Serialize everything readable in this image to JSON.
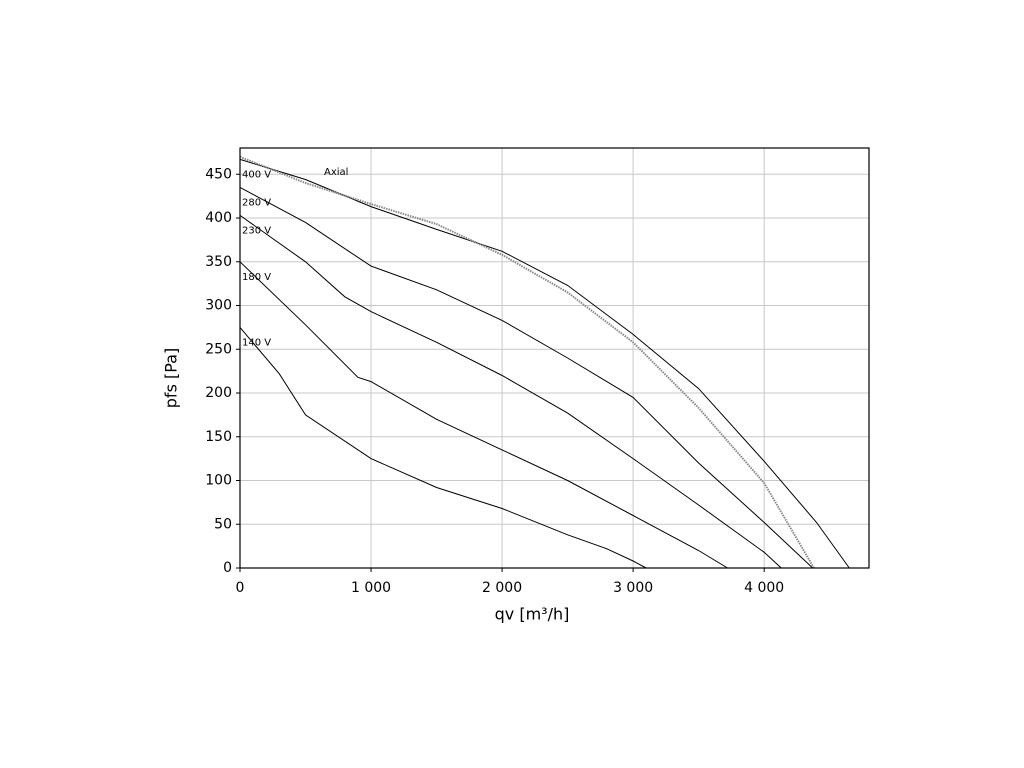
{
  "chart_data": {
    "type": "line",
    "x_label": "qv [m³/h]",
    "y_label": "pfs [Pa]",
    "xlim": [
      0,
      4800
    ],
    "ylim": [
      0,
      480
    ],
    "xticks": [
      0,
      {
        "value": 1000,
        "label": "1 000"
      },
      {
        "value": 2000,
        "label": "2 000"
      },
      {
        "value": 3000,
        "label": "3 000"
      },
      {
        "value": 4000,
        "label": "4 000"
      }
    ],
    "yticks": [
      0,
      50,
      100,
      150,
      200,
      250,
      300,
      350,
      400,
      450
    ],
    "grid": true,
    "series": [
      {
        "name": "400 V",
        "color": "#000000",
        "style": "solid",
        "x": [
          0,
          500,
          1000,
          1500,
          2000,
          2500,
          3000,
          3500,
          4000,
          4400,
          4650
        ],
        "values": [
          467,
          444,
          413,
          387,
          362,
          323,
          267,
          205,
          122,
          52,
          0
        ]
      },
      {
        "name": "280 V",
        "color": "#000000",
        "style": "solid",
        "x": [
          0,
          500,
          1000,
          1500,
          2000,
          2500,
          3000,
          3500,
          4000,
          4370
        ],
        "values": [
          435,
          395,
          345,
          318,
          283,
          240,
          195,
          120,
          52,
          0
        ]
      },
      {
        "name": "230 V",
        "color": "#000000",
        "style": "solid",
        "x": [
          0,
          500,
          800,
          1000,
          1500,
          2000,
          2500,
          3000,
          3500,
          4000,
          4130
        ],
        "values": [
          403,
          350,
          310,
          293,
          258,
          220,
          177,
          125,
          72,
          18,
          0
        ]
      },
      {
        "name": "180 V",
        "color": "#000000",
        "style": "solid",
        "x": [
          0,
          500,
          900,
          1000,
          1500,
          2000,
          2500,
          3000,
          3500,
          3720
        ],
        "values": [
          350,
          278,
          218,
          213,
          170,
          135,
          100,
          60,
          20,
          0
        ]
      },
      {
        "name": "140 V",
        "color": "#000000",
        "style": "solid",
        "x": [
          0,
          300,
          500,
          1000,
          1500,
          2000,
          2500,
          2800,
          3000,
          3100
        ],
        "values": [
          275,
          222,
          175,
          125,
          92,
          68,
          38,
          22,
          8,
          0
        ]
      },
      {
        "name": "Axial",
        "color": "#888888",
        "style": "dotted",
        "x": [
          0,
          500,
          1000,
          1500,
          2000,
          2500,
          3000,
          3500,
          4000,
          4380
        ],
        "values": [
          470,
          440,
          416,
          393,
          358,
          315,
          258,
          183,
          97,
          0
        ]
      }
    ]
  }
}
